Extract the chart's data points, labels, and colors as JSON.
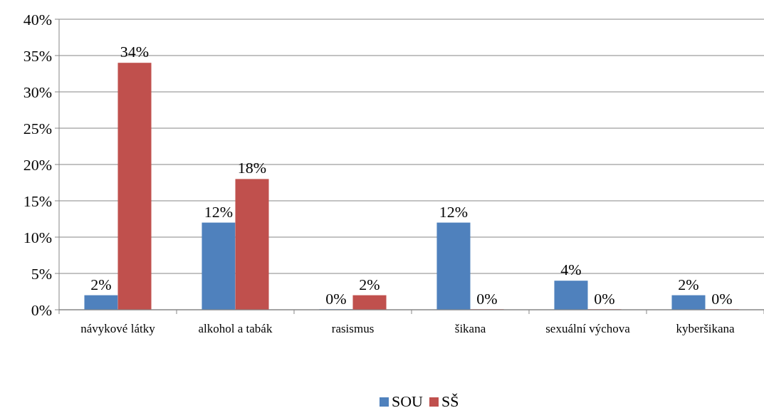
{
  "chart_data": {
    "type": "bar",
    "categories": [
      "návykové látky",
      "alkohol a tabák",
      "rasismus",
      "šikana",
      "sexuální výchova",
      "kyberšikana"
    ],
    "series": [
      {
        "name": "SOU",
        "color": "#4f81bd",
        "values": [
          2,
          12,
          0,
          12,
          4,
          2
        ],
        "value_labels": [
          "2%",
          "12%",
          "0%",
          "12%",
          "4%",
          "2%"
        ]
      },
      {
        "name": "SŠ",
        "color": "#c0504d",
        "values": [
          34,
          18,
          2,
          0,
          0,
          0
        ],
        "value_labels": [
          "34%",
          "18%",
          "2%",
          "0%",
          "0%",
          "0%"
        ]
      }
    ],
    "ylim": [
      0,
      40
    ],
    "yticks": [
      {
        "value": 0,
        "label": "0%"
      },
      {
        "value": 5,
        "label": "5%"
      },
      {
        "value": 10,
        "label": "10%"
      },
      {
        "value": 15,
        "label": "15%"
      },
      {
        "value": 20,
        "label": "20%"
      },
      {
        "value": 25,
        "label": "25%"
      },
      {
        "value": 30,
        "label": "30%"
      },
      {
        "value": 35,
        "label": "35%"
      },
      {
        "value": 40,
        "label": "40%"
      }
    ],
    "grid": "y",
    "legend": "bottom"
  }
}
